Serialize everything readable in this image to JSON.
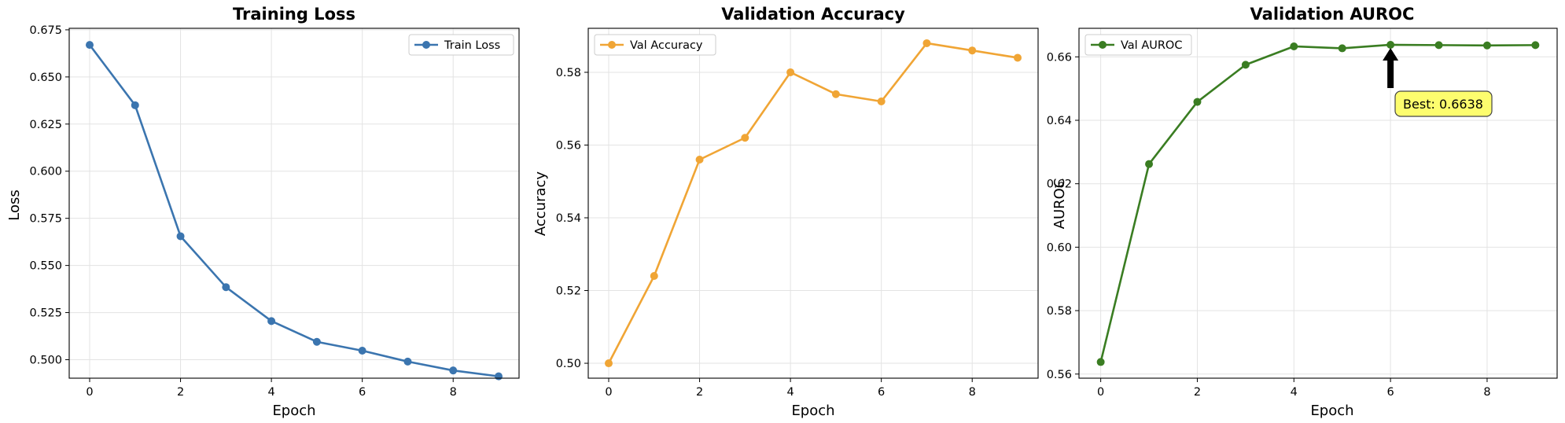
{
  "chart_data": [
    {
      "type": "line",
      "title": "Training Loss",
      "xlabel": "Epoch",
      "ylabel": "Loss",
      "x": [
        0,
        1,
        2,
        3,
        4,
        5,
        6,
        7,
        8,
        9
      ],
      "xticks": [
        0,
        2,
        4,
        6,
        8
      ],
      "xlim": [
        -0.45,
        9.45
      ],
      "ylim": [
        0.4902,
        0.6758
      ],
      "yticks": [
        0.5,
        0.525,
        0.55,
        0.575,
        0.6,
        0.625,
        0.65,
        0.675
      ],
      "ytick_labels": [
        "0.500",
        "0.525",
        "0.550",
        "0.575",
        "0.600",
        "0.625",
        "0.650",
        "0.675"
      ],
      "grid": true,
      "legend": "top-right",
      "series": [
        {
          "name": "Train Loss",
          "color": "#3b75af",
          "values": [
            0.667,
            0.635,
            0.5655,
            0.5385,
            0.5205,
            0.5095,
            0.5048,
            0.499,
            0.4943,
            0.4912
          ]
        }
      ]
    },
    {
      "type": "line",
      "title": "Validation Accuracy",
      "xlabel": "Epoch",
      "ylabel": "Accuracy",
      "x": [
        0,
        1,
        2,
        3,
        4,
        5,
        6,
        7,
        8,
        9
      ],
      "xticks": [
        0,
        2,
        4,
        6,
        8
      ],
      "xlim": [
        -0.45,
        9.45
      ],
      "ylim": [
        0.4959,
        0.5921
      ],
      "yticks": [
        0.5,
        0.52,
        0.54,
        0.56,
        0.58
      ],
      "ytick_labels": [
        "0.50",
        "0.52",
        "0.54",
        "0.56",
        "0.58"
      ],
      "grid": true,
      "legend": "top-left",
      "series": [
        {
          "name": "Val Accuracy",
          "color": "#f0a535",
          "values": [
            0.5,
            0.524,
            0.556,
            0.562,
            0.58,
            0.574,
            0.572,
            0.588,
            0.586,
            0.584
          ]
        }
      ]
    },
    {
      "type": "line",
      "title": "Validation AUROC",
      "xlabel": "Epoch",
      "ylabel": "AUROC",
      "x": [
        0,
        1,
        2,
        3,
        4,
        5,
        6,
        7,
        8,
        9
      ],
      "xticks": [
        0,
        2,
        4,
        6,
        8
      ],
      "xlim": [
        -0.45,
        9.45
      ],
      "ylim": [
        0.5587,
        0.669
      ],
      "yticks": [
        0.56,
        0.58,
        0.6,
        0.62,
        0.64,
        0.66
      ],
      "ytick_labels": [
        "0.56",
        "0.58",
        "0.60",
        "0.62",
        "0.64",
        "0.66"
      ],
      "grid": true,
      "legend": "top-left",
      "series": [
        {
          "name": "Val AUROC",
          "color": "#3a7d22",
          "values": [
            0.5638,
            0.6262,
            0.6458,
            0.6575,
            0.6633,
            0.6627,
            0.6638,
            0.6637,
            0.6636,
            0.6637
          ]
        }
      ],
      "annotation": {
        "text": "Best: 0.6638",
        "x": 6,
        "y": 0.6638,
        "box_color": "#fdfd6e"
      }
    }
  ]
}
